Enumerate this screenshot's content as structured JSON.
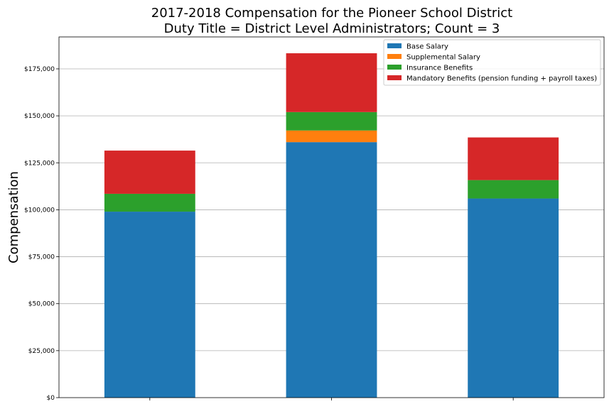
{
  "chart_data": {
    "type": "bar",
    "stacked": true,
    "title": "2017-2018 Compensation for the Pioneer School District",
    "subtitle": "Duty Title = District Level Administrators; Count = 3",
    "xlabel": "",
    "ylabel": "Compensation",
    "categories": [
      "",
      "",
      ""
    ],
    "ylim": [
      0,
      192000
    ],
    "yticks": [
      0,
      25000,
      50000,
      75000,
      100000,
      125000,
      150000,
      175000
    ],
    "ytick_labels": [
      "$0",
      "$25,000",
      "$50,000",
      "$75,000",
      "$100,000",
      "$125,000",
      "$150,000",
      "$175,000"
    ],
    "grid": "horizontal",
    "legend_position": "top-right",
    "series": [
      {
        "name": "Base Salary",
        "color": "#1f77b4",
        "values": [
          99000,
          136000,
          106000
        ]
      },
      {
        "name": "Supplemental Salary",
        "color": "#ff7f0e",
        "values": [
          0,
          6200,
          0
        ]
      },
      {
        "name": "Insurance Benefits",
        "color": "#2ca02c",
        "values": [
          9500,
          9800,
          9800
        ]
      },
      {
        "name": "Mandatory Benefits (pension funding + payroll taxes)",
        "color": "#d62728",
        "values": [
          23000,
          31300,
          22700
        ]
      }
    ]
  }
}
